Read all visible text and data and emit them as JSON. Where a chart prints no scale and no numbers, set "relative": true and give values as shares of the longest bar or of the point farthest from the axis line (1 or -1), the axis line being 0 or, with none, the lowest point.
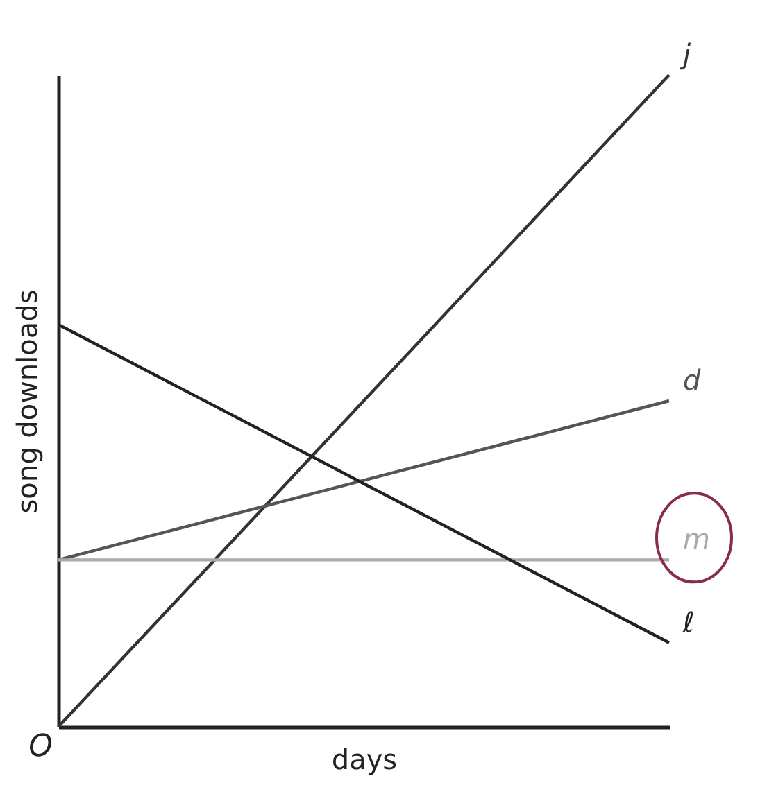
{
  "chart_data": {
    "type": "line",
    "relative": true,
    "xlabel": "days",
    "ylabel": "song downloads",
    "categories": [
      null,
      null
    ],
    "series": [
      {
        "name": "j",
        "color": "#333333",
        "values": [
          0,
          1
        ]
      },
      {
        "name": "d",
        "color": "#555555",
        "values": [
          0.256,
          0.5
        ]
      },
      {
        "name": "m",
        "color": "#aaaaaa",
        "values": [
          0.256,
          0.256
        ]
      },
      {
        "name": "ℓ",
        "color": "#222222",
        "values": [
          0.617,
          0.129
        ]
      }
    ],
    "annotations": [
      "O"
    ],
    "tick_labels": false,
    "grid": false,
    "legend": false,
    "marker": "none",
    "line_style": "solid"
  }
}
